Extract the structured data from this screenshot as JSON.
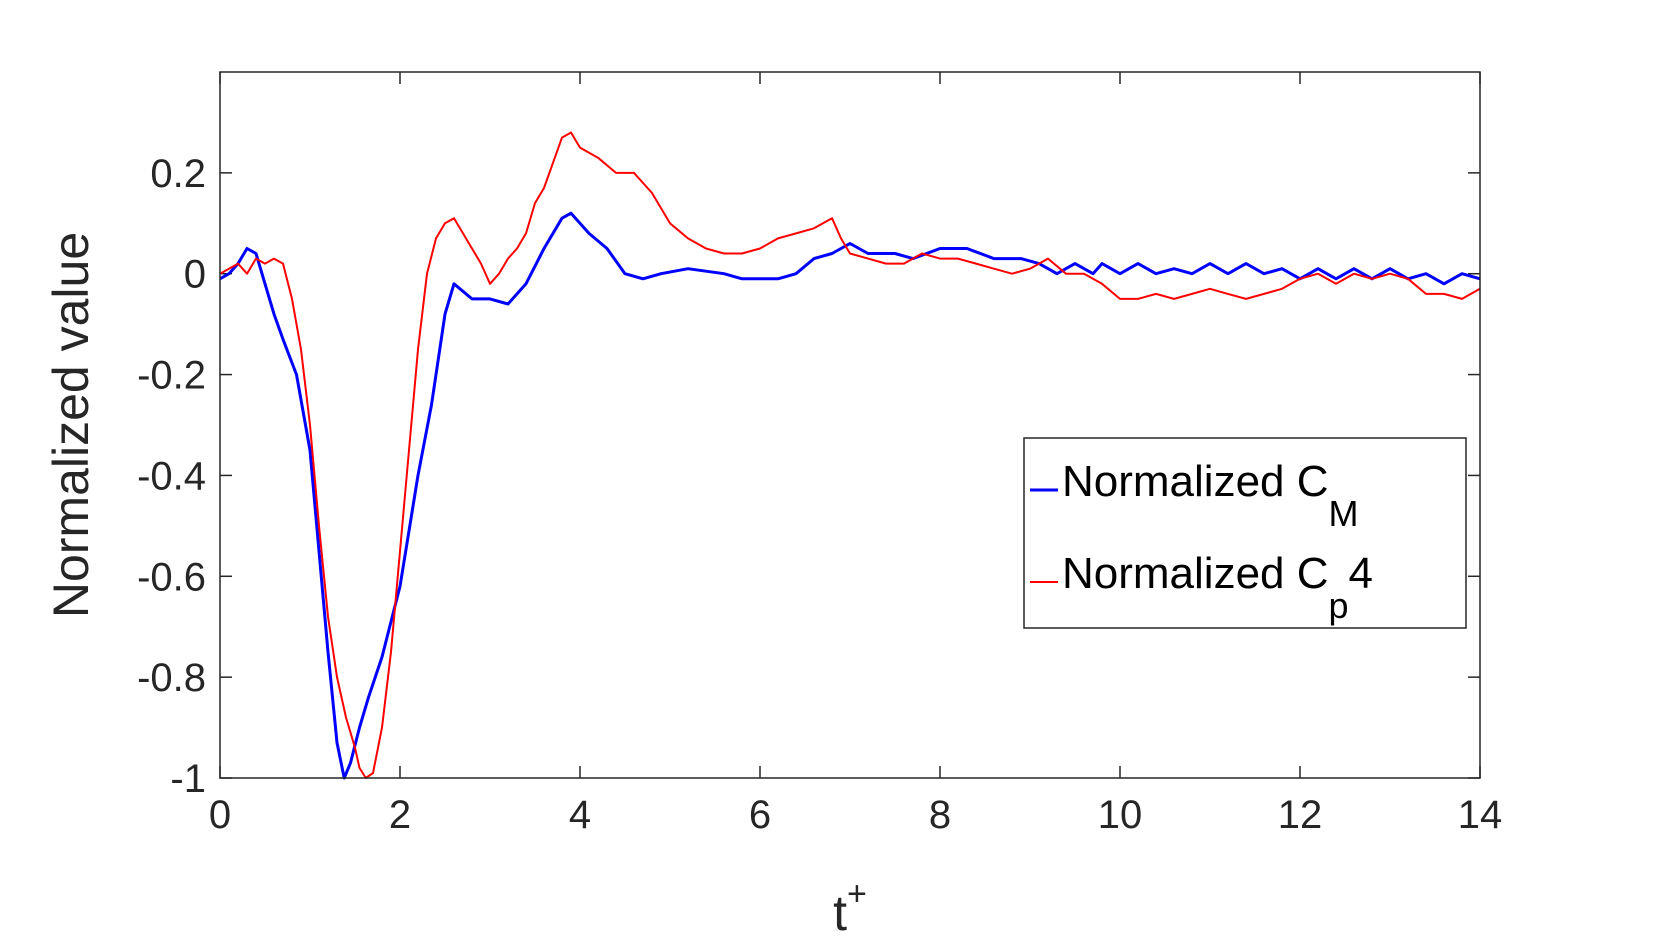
{
  "chart_data": {
    "type": "line",
    "xlabel": "t",
    "xlabel_superscript": "+",
    "ylabel": "Normalized value",
    "xlim": [
      0,
      14
    ],
    "ylim": [
      -1,
      0.4
    ],
    "xticks": [
      0,
      2,
      4,
      6,
      8,
      10,
      12,
      14
    ],
    "yticks": [
      -1,
      -0.8,
      -0.6,
      -0.4,
      -0.2,
      0,
      0.2
    ],
    "xtick_labels": [
      "0",
      "2",
      "4",
      "6",
      "8",
      "10",
      "12",
      "14"
    ],
    "ytick_labels": [
      "-1",
      "-0.8",
      "-0.6",
      "-0.4",
      "-0.2",
      "0",
      "0.2"
    ],
    "grid": false,
    "legend_position": "right",
    "series": [
      {
        "name": "Normalized C",
        "name_subscript": "M",
        "color": "#0000ff",
        "points": [
          [
            0,
            -0.01
          ],
          [
            0.1,
            0.0
          ],
          [
            0.2,
            0.02
          ],
          [
            0.3,
            0.05
          ],
          [
            0.4,
            0.04
          ],
          [
            0.5,
            -0.02
          ],
          [
            0.6,
            -0.08
          ],
          [
            0.7,
            -0.13
          ],
          [
            0.85,
            -0.2
          ],
          [
            1.0,
            -0.35
          ],
          [
            1.1,
            -0.55
          ],
          [
            1.2,
            -0.75
          ],
          [
            1.3,
            -0.93
          ],
          [
            1.38,
            -1.0
          ],
          [
            1.45,
            -0.97
          ],
          [
            1.55,
            -0.9
          ],
          [
            1.65,
            -0.84
          ],
          [
            1.8,
            -0.76
          ],
          [
            2.0,
            -0.62
          ],
          [
            2.2,
            -0.4
          ],
          [
            2.35,
            -0.26
          ],
          [
            2.5,
            -0.08
          ],
          [
            2.6,
            -0.02
          ],
          [
            2.8,
            -0.05
          ],
          [
            3.0,
            -0.05
          ],
          [
            3.2,
            -0.06
          ],
          [
            3.4,
            -0.02
          ],
          [
            3.6,
            0.05
          ],
          [
            3.8,
            0.11
          ],
          [
            3.9,
            0.12
          ],
          [
            4.1,
            0.08
          ],
          [
            4.3,
            0.05
          ],
          [
            4.5,
            0.0
          ],
          [
            4.7,
            -0.01
          ],
          [
            4.9,
            0.0
          ],
          [
            5.2,
            0.01
          ],
          [
            5.6,
            0.0
          ],
          [
            5.8,
            -0.01
          ],
          [
            6.0,
            -0.01
          ],
          [
            6.2,
            -0.01
          ],
          [
            6.4,
            0.0
          ],
          [
            6.6,
            0.03
          ],
          [
            6.8,
            0.04
          ],
          [
            7.0,
            0.06
          ],
          [
            7.2,
            0.04
          ],
          [
            7.5,
            0.04
          ],
          [
            7.7,
            0.03
          ],
          [
            8.0,
            0.05
          ],
          [
            8.3,
            0.05
          ],
          [
            8.6,
            0.03
          ],
          [
            8.9,
            0.03
          ],
          [
            9.1,
            0.02
          ],
          [
            9.3,
            0.0
          ],
          [
            9.5,
            0.02
          ],
          [
            9.7,
            0.0
          ],
          [
            9.8,
            0.02
          ],
          [
            10.0,
            0.0
          ],
          [
            10.2,
            0.02
          ],
          [
            10.4,
            0.0
          ],
          [
            10.6,
            0.01
          ],
          [
            10.8,
            0.0
          ],
          [
            11.0,
            0.02
          ],
          [
            11.2,
            0.0
          ],
          [
            11.4,
            0.02
          ],
          [
            11.6,
            0.0
          ],
          [
            11.8,
            0.01
          ],
          [
            12.0,
            -0.01
          ],
          [
            12.2,
            0.01
          ],
          [
            12.4,
            -0.01
          ],
          [
            12.6,
            0.01
          ],
          [
            12.8,
            -0.01
          ],
          [
            13.0,
            0.01
          ],
          [
            13.2,
            -0.01
          ],
          [
            13.4,
            0.0
          ],
          [
            13.6,
            -0.02
          ],
          [
            13.8,
            0.0
          ],
          [
            14.0,
            -0.01
          ]
        ]
      },
      {
        "name": "Normalized C",
        "name_subscript": "p",
        "name_suffix": "4",
        "color": "#ff0000",
        "points": [
          [
            0,
            0.0
          ],
          [
            0.1,
            0.01
          ],
          [
            0.2,
            0.02
          ],
          [
            0.3,
            0.0
          ],
          [
            0.4,
            0.03
          ],
          [
            0.5,
            0.02
          ],
          [
            0.6,
            0.03
          ],
          [
            0.7,
            0.02
          ],
          [
            0.8,
            -0.05
          ],
          [
            0.9,
            -0.15
          ],
          [
            1.0,
            -0.3
          ],
          [
            1.1,
            -0.5
          ],
          [
            1.2,
            -0.68
          ],
          [
            1.3,
            -0.8
          ],
          [
            1.4,
            -0.88
          ],
          [
            1.5,
            -0.94
          ],
          [
            1.55,
            -0.98
          ],
          [
            1.62,
            -1.0
          ],
          [
            1.7,
            -0.99
          ],
          [
            1.8,
            -0.9
          ],
          [
            1.9,
            -0.75
          ],
          [
            2.0,
            -0.55
          ],
          [
            2.1,
            -0.35
          ],
          [
            2.2,
            -0.15
          ],
          [
            2.3,
            0.0
          ],
          [
            2.4,
            0.07
          ],
          [
            2.5,
            0.1
          ],
          [
            2.6,
            0.11
          ],
          [
            2.7,
            0.08
          ],
          [
            2.8,
            0.05
          ],
          [
            2.9,
            0.02
          ],
          [
            3.0,
            -0.02
          ],
          [
            3.1,
            0.0
          ],
          [
            3.2,
            0.03
          ],
          [
            3.3,
            0.05
          ],
          [
            3.4,
            0.08
          ],
          [
            3.5,
            0.14
          ],
          [
            3.6,
            0.17
          ],
          [
            3.7,
            0.22
          ],
          [
            3.8,
            0.27
          ],
          [
            3.9,
            0.28
          ],
          [
            4.0,
            0.25
          ],
          [
            4.2,
            0.23
          ],
          [
            4.4,
            0.2
          ],
          [
            4.6,
            0.2
          ],
          [
            4.8,
            0.16
          ],
          [
            5.0,
            0.1
          ],
          [
            5.2,
            0.07
          ],
          [
            5.4,
            0.05
          ],
          [
            5.6,
            0.04
          ],
          [
            5.8,
            0.04
          ],
          [
            6.0,
            0.05
          ],
          [
            6.2,
            0.07
          ],
          [
            6.4,
            0.08
          ],
          [
            6.6,
            0.09
          ],
          [
            6.8,
            0.11
          ],
          [
            6.9,
            0.07
          ],
          [
            7.0,
            0.04
          ],
          [
            7.2,
            0.03
          ],
          [
            7.4,
            0.02
          ],
          [
            7.6,
            0.02
          ],
          [
            7.8,
            0.04
          ],
          [
            8.0,
            0.03
          ],
          [
            8.2,
            0.03
          ],
          [
            8.4,
            0.02
          ],
          [
            8.6,
            0.01
          ],
          [
            8.8,
            0.0
          ],
          [
            9.0,
            0.01
          ],
          [
            9.2,
            0.03
          ],
          [
            9.4,
            0.0
          ],
          [
            9.6,
            0.0
          ],
          [
            9.8,
            -0.02
          ],
          [
            10.0,
            -0.05
          ],
          [
            10.2,
            -0.05
          ],
          [
            10.4,
            -0.04
          ],
          [
            10.6,
            -0.05
          ],
          [
            10.8,
            -0.04
          ],
          [
            11.0,
            -0.03
          ],
          [
            11.2,
            -0.04
          ],
          [
            11.4,
            -0.05
          ],
          [
            11.6,
            -0.04
          ],
          [
            11.8,
            -0.03
          ],
          [
            12.0,
            -0.01
          ],
          [
            12.2,
            0.0
          ],
          [
            12.4,
            -0.02
          ],
          [
            12.6,
            0.0
          ],
          [
            12.8,
            -0.01
          ],
          [
            13.0,
            0.0
          ],
          [
            13.2,
            -0.01
          ],
          [
            13.4,
            -0.04
          ],
          [
            13.6,
            -0.04
          ],
          [
            13.8,
            -0.05
          ],
          [
            14.0,
            -0.03
          ]
        ]
      }
    ]
  }
}
